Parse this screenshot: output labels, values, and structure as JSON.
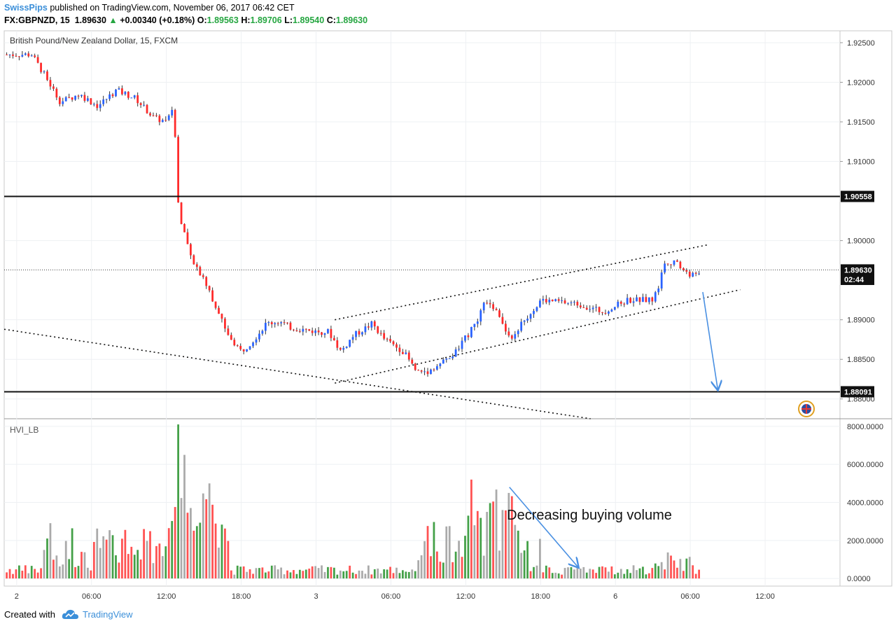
{
  "header": {
    "author": "SwissPips",
    "published_text": "published on TradingView.com, November 06, 2017 06:42 CET",
    "symbol": "FX:GBPNZD, 15",
    "last": "1.89630",
    "change_arrow": "▲",
    "change": "+0.00340 (+0.18%)",
    "o_label": "O:",
    "o_val": "1.89563",
    "h_label": "H:",
    "h_val": "1.89706",
    "l_label": "L:",
    "l_val": "1.89540",
    "c_label": "C:",
    "c_val": "1.89630"
  },
  "footer": {
    "created_with": "Created with",
    "brand": "TradingView"
  },
  "colors": {
    "up": "#2962ff",
    "down": "#ff2a2a",
    "vol_up": "#43a047",
    "vol_down": "#ff5252",
    "vol_neutral": "#aaaaaa",
    "arrow": "#4a90e2"
  },
  "chart_data": [
    {
      "type": "candlestick",
      "title": "British Pound/New Zealand Dollar, 15, FXCM",
      "ylim": [
        1.8775,
        1.9265
      ],
      "y_ticks": [
        "1.92500",
        "1.92000",
        "1.91500",
        "1.91000",
        "1.90000",
        "1.89000",
        "1.88500",
        "1.88000"
      ],
      "x_tick_labels": [
        "2",
        "06:00",
        "12:00",
        "18:00",
        "3",
        "06:00",
        "12:00",
        "18:00",
        "6",
        "06:00",
        "12:00"
      ],
      "x_tick_hours": [
        0,
        6,
        12,
        18,
        24,
        30,
        36,
        42,
        48,
        54,
        60
      ],
      "x_range_hours": [
        -1,
        66
      ],
      "price_path": [
        [
          -0.8,
          1.9235
        ],
        [
          1.2,
          1.9235
        ],
        [
          2.2,
          1.921
        ],
        [
          3.5,
          1.9175
        ],
        [
          5,
          1.9185
        ],
        [
          6.5,
          1.917
        ],
        [
          8,
          1.919
        ],
        [
          9.5,
          1.918
        ],
        [
          11,
          1.9155
        ],
        [
          12,
          1.915
        ],
        [
          12.6,
          1.9165
        ],
        [
          13,
          1.903
        ],
        [
          14,
          1.898
        ],
        [
          15,
          1.895
        ],
        [
          16,
          1.8915
        ],
        [
          17,
          1.888
        ],
        [
          18,
          1.886
        ],
        [
          19,
          1.8875
        ],
        [
          20,
          1.8895
        ],
        [
          21,
          1.8898
        ],
        [
          22,
          1.889
        ],
        [
          24,
          1.8885
        ],
        [
          25,
          1.8885
        ],
        [
          26,
          1.886
        ],
        [
          27,
          1.888
        ],
        [
          28.5,
          1.8895
        ],
        [
          29.5,
          1.8875
        ],
        [
          31,
          1.886
        ],
        [
          32,
          1.8835
        ],
        [
          33,
          1.8835
        ],
        [
          35,
          1.8855
        ],
        [
          37,
          1.89
        ],
        [
          37.5,
          1.892
        ],
        [
          38.5,
          1.8915
        ],
        [
          39.5,
          1.8875
        ],
        [
          41,
          1.8905
        ],
        [
          42,
          1.8925
        ],
        [
          45,
          1.892
        ],
        [
          47,
          1.891
        ],
        [
          49,
          1.8925
        ],
        [
          51,
          1.8925
        ],
        [
          51.5,
          1.8945
        ],
        [
          52,
          1.8975
        ],
        [
          53,
          1.897
        ],
        [
          54,
          1.8955
        ],
        [
          54.9,
          1.8963
        ]
      ],
      "price_labels": [
        {
          "value": "1.90558",
          "price": 1.90558
        },
        {
          "value": "1.89630",
          "price": 1.8963
        },
        {
          "value": "02:44",
          "price": 1.8951
        },
        {
          "value": "1.88091",
          "price": 1.88091
        }
      ],
      "horizontal_lines": [
        1.90558,
        1.88091
      ],
      "dotted_current_price": 1.8963,
      "trendlines": [
        {
          "from": [
            -1,
            1.8888
          ],
          "to": [
            46,
            1.8775
          ]
        },
        {
          "from": [
            25.5,
            1.89
          ],
          "to": [
            55.5,
            1.8995
          ]
        },
        {
          "from": [
            25.5,
            1.882
          ],
          "to": [
            58,
            1.8938
          ]
        }
      ],
      "arrow": {
        "from": [
          55,
          1.8935
        ],
        "to": [
          56.2,
          1.8812
        ]
      }
    },
    {
      "type": "bar",
      "title": "HVI_LB",
      "ylim": [
        -400,
        8400
      ],
      "y_ticks": [
        "8000.0000",
        "6000.0000",
        "4000.0000",
        "2000.0000",
        "0.0000"
      ],
      "spikes": [
        {
          "hour": 13.0,
          "value": 8100,
          "color": "down"
        },
        {
          "hour": 13.5,
          "value": 6500,
          "color": "down"
        },
        {
          "hour": 15.5,
          "value": 5000,
          "color": "down"
        },
        {
          "hour": 36.5,
          "value": 5200,
          "color": "down"
        },
        {
          "hour": 39.0,
          "value": 3600,
          "color": "up"
        }
      ],
      "annotation": "Decreasing buying volume",
      "arrow": {
        "from": [
          39.5,
          4800
        ],
        "to": [
          45,
          600
        ]
      }
    }
  ]
}
